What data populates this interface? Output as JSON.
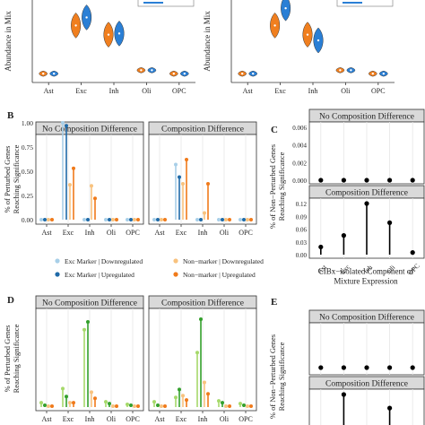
{
  "colors": {
    "strip": "#d9d9d9",
    "grid": "#e6e6e6",
    "axis": "#333333",
    "orange": "#f07f1f",
    "blue": "#2a7fd5",
    "exc_marker_down": "#a8cfe8",
    "exc_marker_up": "#1f6aa8",
    "nonmarker_down": "#f8c27e",
    "nonmarker_up": "#f07a1a",
    "inh_light": "#a6d96a",
    "inh_dark": "#33a02c",
    "lollipop_black": "#000000"
  },
  "panel_letters": {
    "b": "B",
    "c": "C",
    "d": "D",
    "e": "E"
  },
  "cell_types": [
    "Ast",
    "Exc",
    "Inh",
    "Oli",
    "OPC"
  ],
  "chart_data": [
    {
      "id": "A-left",
      "type": "violin",
      "ylabel": "Abundance in Mix",
      "categories": [
        "Ast",
        "Exc",
        "Inh",
        "Oli",
        "OPC"
      ],
      "series": [
        {
          "color": "orange",
          "values": [
            0.03,
            0.45,
            0.37,
            0.06,
            0.03
          ]
        },
        {
          "color": "blue",
          "values": [
            0.03,
            0.52,
            0.38,
            0.06,
            0.03
          ]
        }
      ]
    },
    {
      "id": "A-right",
      "type": "violin",
      "ylabel": "Abundance in Mix",
      "categories": [
        "Ast",
        "Exc",
        "Inh",
        "Oli",
        "OPC"
      ],
      "series": [
        {
          "color": "orange",
          "values": [
            0.03,
            0.45,
            0.37,
            0.06,
            0.03
          ]
        },
        {
          "color": "blue",
          "values": [
            0.03,
            0.6,
            0.32,
            0.06,
            0.03
          ]
        }
      ]
    },
    {
      "id": "B",
      "type": "lollipop",
      "ylabel": "% of Perturbed Genes\nReaching Significance",
      "ylim": [
        0,
        1
      ],
      "yticks": [
        "0.00",
        "0.25",
        "0.50",
        "0.75",
        "1.00"
      ],
      "categories": [
        "Ast",
        "Exc",
        "Inh",
        "Oli",
        "OPC"
      ],
      "facets": [
        {
          "title": "No Composition Difference",
          "series": [
            {
              "key": "exc_marker_down",
              "values": [
                0,
                1.0,
                0,
                0,
                0
              ]
            },
            {
              "key": "exc_marker_up",
              "values": [
                0,
                0.97,
                0,
                0,
                0
              ]
            },
            {
              "key": "nonmarker_down",
              "values": [
                0,
                0.36,
                0.35,
                0,
                0
              ]
            },
            {
              "key": "nonmarker_up",
              "values": [
                0,
                0.53,
                0.22,
                0,
                0
              ]
            }
          ]
        },
        {
          "title": "Composition Difference",
          "series": [
            {
              "key": "exc_marker_down",
              "values": [
                0,
                0.57,
                0,
                0,
                0
              ]
            },
            {
              "key": "exc_marker_up",
              "values": [
                0,
                0.44,
                0,
                0,
                0
              ]
            },
            {
              "key": "nonmarker_down",
              "values": [
                0,
                0.37,
                0.07,
                0,
                0
              ]
            },
            {
              "key": "nonmarker_up",
              "values": [
                0,
                0.62,
                0.37,
                0,
                0
              ]
            }
          ]
        }
      ],
      "legend": [
        {
          "key": "exc_marker_down",
          "label": "Exc Marker | Downregulated"
        },
        {
          "key": "nonmarker_down",
          "label": "Non−marker | Downregulated"
        },
        {
          "key": "exc_marker_up",
          "label": "Exc Marker | Upregulated"
        },
        {
          "key": "nonmarker_up",
          "label": "Non−marker | Upregulated"
        }
      ]
    },
    {
      "id": "C",
      "type": "lollipop",
      "ylabel": "% of Non−Perturbed Genes\nReaching Significance",
      "xlabel": "CIBx−isolated Component of\nMixture Expression",
      "categories": [
        "Ast",
        "Exc",
        "Inh",
        "Oli",
        "OPC"
      ],
      "facets": [
        {
          "title": "No Composition Difference",
          "ylim": [
            0,
            0.006
          ],
          "yticks": [
            "0.006",
            "0.004",
            "0.002",
            "0.000"
          ],
          "values": [
            0,
            0,
            0,
            0,
            0
          ]
        },
        {
          "title": "Composition Difference",
          "ylim": [
            0,
            0.12
          ],
          "yticks": [
            "0.12",
            "0.09",
            "0.06",
            "0.03",
            "0.00"
          ],
          "values": [
            0.018,
            0.045,
            0.12,
            0.075,
            0.005
          ]
        }
      ]
    },
    {
      "id": "D",
      "type": "lollipop",
      "ylabel": "% of Perturbed Genes\nReaching Significance",
      "ylim": [
        0,
        1
      ],
      "categories": [
        "Ast",
        "Exc",
        "Inh",
        "Oli",
        "OPC"
      ],
      "facets": [
        {
          "title": "No Composition Difference",
          "series": [
            {
              "color": "inh_light",
              "values": [
                0.05,
                0.21,
                0.88,
                0.06,
                0.03
              ]
            },
            {
              "color": "inh_dark",
              "values": [
                0.02,
                0.12,
                0.97,
                0.04,
                0.02
              ]
            },
            {
              "color": "nonmarker_down",
              "values": [
                0.01,
                0.05,
                0.17,
                0.01,
                0.01
              ]
            },
            {
              "color": "nonmarker_up",
              "values": [
                0.01,
                0.05,
                0.1,
                0.01,
                0.01
              ]
            }
          ]
        },
        {
          "title": "Composition Difference",
          "series": [
            {
              "color": "inh_light",
              "values": [
                0.06,
                0.11,
                0.62,
                0.07,
                0.04
              ]
            },
            {
              "color": "inh_dark",
              "values": [
                0.02,
                0.2,
                1.0,
                0.05,
                0.02
              ]
            },
            {
              "color": "nonmarker_down",
              "values": [
                0.01,
                0.13,
                0.28,
                0.01,
                0.01
              ]
            },
            {
              "color": "nonmarker_up",
              "values": [
                0.01,
                0.08,
                0.15,
                0.01,
                0.01
              ]
            }
          ]
        }
      ]
    },
    {
      "id": "E",
      "type": "lollipop",
      "ylabel": "% of Non−Perturbed Genes\nReaching Significance",
      "categories": [
        "Ast",
        "Exc",
        "Inh",
        "Oli",
        "OPC"
      ],
      "facets": [
        {
          "title": "No Composition Difference",
          "ylim": [
            0,
            0.006
          ],
          "values": [
            0,
            0,
            0,
            0,
            0
          ]
        },
        {
          "title": "Composition Difference",
          "ylim": [
            0,
            0.09
          ],
          "values": [
            0.0,
            0.09,
            0.0,
            0.05,
            0.0
          ]
        }
      ]
    }
  ]
}
